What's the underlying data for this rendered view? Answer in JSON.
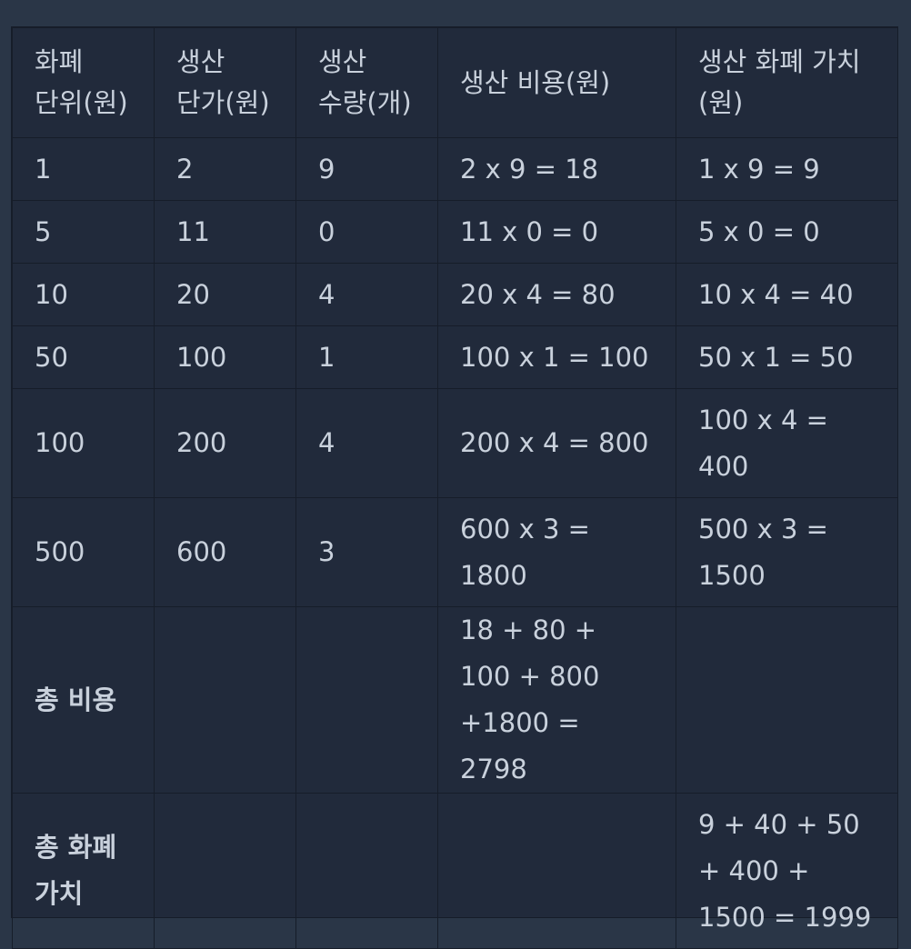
{
  "headers": [
    "화폐 단위(원)",
    "생산 단가(원)",
    "생산 수량(개)",
    "생산 비용(원)",
    "생산 화폐 가치(원)"
  ],
  "rows": [
    [
      "1",
      "2",
      "9",
      "2 x 9 = 18",
      "1 x 9 = 9"
    ],
    [
      "5",
      "11",
      "0",
      "11 x 0 = 0",
      "5 x 0 = 0"
    ],
    [
      "10",
      "20",
      "4",
      "20 x 4 = 80",
      "10 x 4 = 40"
    ],
    [
      "50",
      "100",
      "1",
      "100 x 1 = 100",
      "50 x 1 = 50"
    ],
    [
      "100",
      "200",
      "4",
      "200 x 4 = 800",
      "100 x 4 = 400"
    ],
    [
      "500",
      "600",
      "3",
      "600 x 3 = 1800",
      "500 x 3 = 1500"
    ]
  ],
  "total_cost": {
    "label": "총 비용",
    "value": "18 + 80 + 100 + 800 +1800 = 2798"
  },
  "total_value": {
    "label": "총 화폐 가치",
    "value": "9 + 40 + 50 + 400 + 1500 = 1999"
  }
}
